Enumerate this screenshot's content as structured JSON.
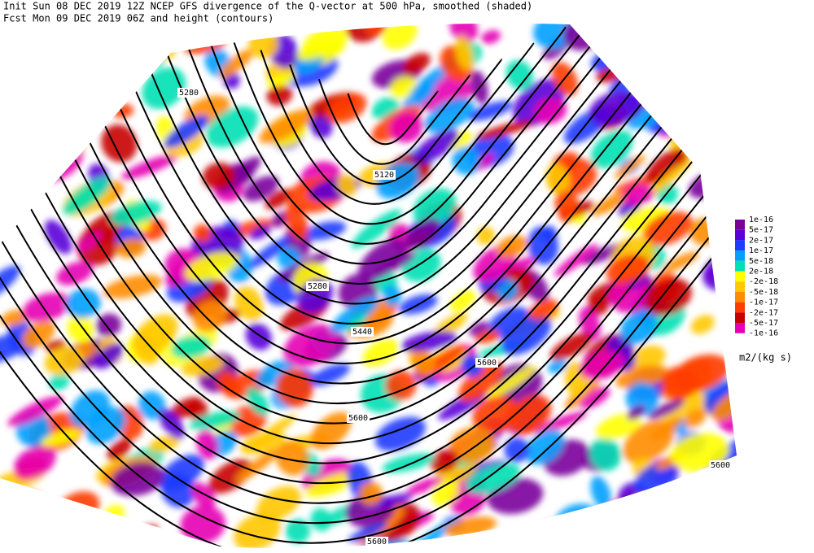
{
  "header": {
    "line1": "Init  Sun 08 DEC 2019 12Z  NCEP GFS divergence of the Q-vector at 500 hPa, smoothed (shaded)",
    "line2": "Fcst Mon 09 DEC 2019 06Z  and height (contours)"
  },
  "contour_labels": [
    "5280",
    "5120",
    "5280",
    "5440",
    "5600",
    "5600",
    "5600",
    "5600"
  ],
  "legend": {
    "items": [
      {
        "label": "1e-16",
        "color": "#7a009c"
      },
      {
        "label": "5e-17",
        "color": "#5a00d8"
      },
      {
        "label": "2e-17",
        "color": "#1e3cff"
      },
      {
        "label": "1e-17",
        "color": "#00a0ff"
      },
      {
        "label": "5e-18",
        "color": "#00e0b4"
      },
      {
        "label": "2e-18",
        "color": "#ffffff"
      },
      {
        "label": "-2e-18",
        "color": "#ffff00"
      },
      {
        "label": "-5e-18",
        "color": "#ffc800"
      },
      {
        "label": "-1e-17",
        "color": "#ff8c00"
      },
      {
        "label": "-2e-17",
        "color": "#ff3c00"
      },
      {
        "label": "-5e-17",
        "color": "#c80000"
      },
      {
        "label": "-1e-16",
        "color": "#e600b4"
      }
    ],
    "unit": "m2/(kg s)"
  }
}
